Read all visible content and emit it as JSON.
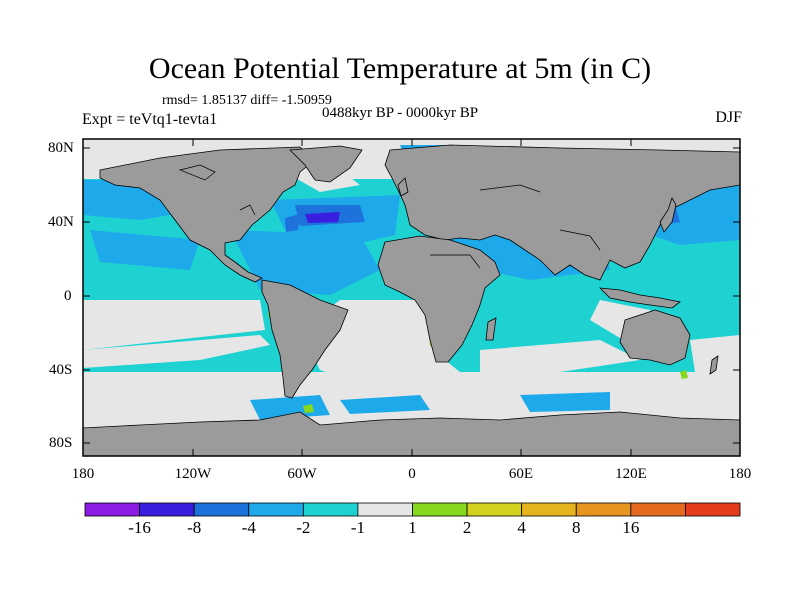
{
  "title": "Ocean Potential Temperature at 5m (in C)",
  "stats": "rmsd= 1.85137  diff= -1.50959",
  "period": "0488kyr BP - 0000kyr BP",
  "experiment": "Expt = teVtq1-tevta1",
  "season": "DJF",
  "lat_labels": [
    "80N",
    "40N",
    "0",
    "40S",
    "80S"
  ],
  "lon_labels": [
    "180",
    "120W",
    "60W",
    "0",
    "60E",
    "120E",
    "180"
  ],
  "colorbar": {
    "colors": [
      "#8c1ce4",
      "#3a1ee0",
      "#1e72dc",
      "#1eaaea",
      "#1ed2d2",
      "#e6e6e6",
      "#86d81e",
      "#d2d21e",
      "#e6b41e",
      "#e6961e",
      "#e66a1e",
      "#e63c1e"
    ],
    "labels": [
      "-16",
      "-8",
      "-4",
      "-2",
      "-1",
      "1",
      "2",
      "4",
      "8",
      "16"
    ]
  },
  "colors": {
    "land": "#9b9b9b",
    "no_change": "#e6e6e6"
  }
}
